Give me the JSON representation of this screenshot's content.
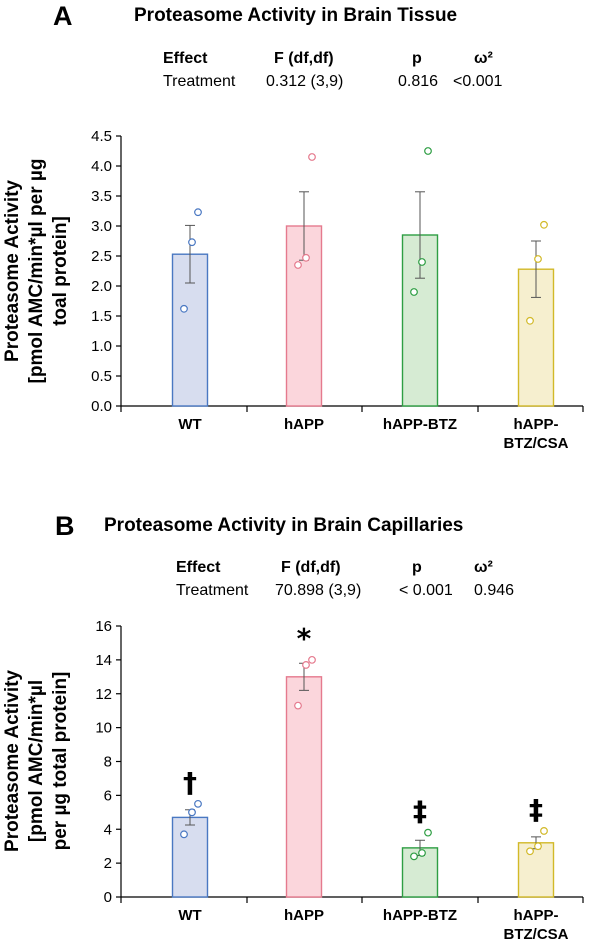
{
  "chart_data": [
    {
      "type": "bar",
      "panel": "A",
      "title": "Proteasome Activity in Brain Tissue",
      "stats_table": {
        "headers": [
          "Effect",
          "F (df,df)",
          "p",
          "ω²"
        ],
        "row": [
          "Treatment",
          "0.312 (3,9)",
          "0.816",
          "<0.001"
        ]
      },
      "ylabel_lines": [
        "Proteasome Activity",
        "[pmol AMC/min*µl per µg",
        "toal protein]"
      ],
      "categories": [
        [
          "WT"
        ],
        [
          "hAPP"
        ],
        [
          "hAPP-BTZ"
        ],
        [
          "hAPP-",
          "BTZ/CSA"
        ]
      ],
      "values": [
        2.53,
        3.0,
        2.85,
        2.28
      ],
      "errors": [
        0.48,
        0.57,
        0.72,
        0.47
      ],
      "points": [
        [
          1.62,
          2.73,
          3.23
        ],
        [
          2.35,
          2.47,
          4.15
        ],
        [
          1.9,
          2.4,
          4.25
        ],
        [
          1.42,
          2.45,
          3.02
        ]
      ],
      "significance": [
        "",
        "",
        "",
        ""
      ],
      "ylim": [
        0,
        4.5
      ],
      "yticks": [
        "0.0",
        "0.5",
        "1.0",
        "1.5",
        "2.0",
        "2.5",
        "3.0",
        "3.5",
        "4.0",
        "4.5"
      ],
      "grid": false
    },
    {
      "type": "bar",
      "panel": "B",
      "title": "Proteasome Activity in Brain Capillaries",
      "stats_table": {
        "headers": [
          "Effect",
          "F (df,df)",
          "p",
          "ω²"
        ],
        "row": [
          "Treatment",
          "70.898 (3,9)",
          "< 0.001",
          "0.946"
        ]
      },
      "ylabel_lines": [
        "Proteasome Activity",
        "[pmol AMC/min*µl",
        "per µg total protein]"
      ],
      "categories": [
        [
          "WT"
        ],
        [
          "hAPP"
        ],
        [
          "hAPP-BTZ"
        ],
        [
          "hAPP-",
          "BTZ/CSA"
        ]
      ],
      "values": [
        4.7,
        13.0,
        2.9,
        3.2
      ],
      "errors": [
        0.45,
        0.8,
        0.45,
        0.35
      ],
      "points": [
        [
          3.7,
          5.0,
          5.5
        ],
        [
          11.3,
          13.7,
          14.0
        ],
        [
          2.4,
          2.6,
          3.8
        ],
        [
          2.7,
          3.0,
          3.9
        ]
      ],
      "significance": [
        "†",
        "*",
        "‡",
        "‡"
      ],
      "ylim": [
        0,
        16
      ],
      "yticks": [
        "0",
        "2",
        "4",
        "6",
        "8",
        "10",
        "12",
        "14",
        "16"
      ],
      "grid": false
    }
  ],
  "colors": {
    "fills": [
      "#d7ddef",
      "#fbd6dc",
      "#d6ebd3",
      "#f6efcf"
    ],
    "strokes": [
      "#4a78c2",
      "#e57a8e",
      "#2e9e43",
      "#d2b928"
    ],
    "axis": "#000000",
    "error_bar": "#555555"
  }
}
